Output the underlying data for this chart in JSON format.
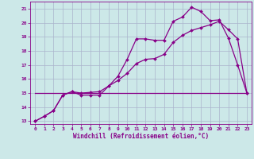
{
  "xlabel": "Windchill (Refroidissement éolien,°C)",
  "bg_color": "#cce8e8",
  "grid_color": "#aab4cc",
  "line_color": "#880088",
  "xlim": [
    -0.5,
    23.5
  ],
  "ylim": [
    12.8,
    21.5
  ],
  "yticks": [
    13,
    14,
    15,
    16,
    17,
    18,
    19,
    20,
    21
  ],
  "xticks": [
    0,
    1,
    2,
    3,
    4,
    5,
    6,
    7,
    8,
    9,
    10,
    11,
    12,
    13,
    14,
    15,
    16,
    17,
    18,
    19,
    20,
    21,
    22,
    23
  ],
  "curve1_x": [
    0,
    1,
    2,
    3,
    4,
    5,
    6,
    7,
    8,
    9,
    10,
    11,
    12,
    13,
    14,
    15,
    16,
    17,
    18,
    19,
    20,
    21,
    22,
    23
  ],
  "curve1_y": [
    13.0,
    13.35,
    13.75,
    14.85,
    15.1,
    14.85,
    14.85,
    14.85,
    15.5,
    16.2,
    17.4,
    18.85,
    18.85,
    18.75,
    18.75,
    20.1,
    20.4,
    21.1,
    20.8,
    20.15,
    20.2,
    18.9,
    17.0,
    15.0
  ],
  "curve2_x": [
    0,
    1,
    2,
    3,
    4,
    5,
    6,
    7,
    8,
    9,
    10,
    11,
    12,
    13,
    14,
    15,
    16,
    17,
    18,
    19,
    20,
    21,
    22,
    23
  ],
  "curve2_y": [
    13.0,
    13.35,
    13.75,
    14.85,
    15.1,
    15.0,
    15.05,
    15.1,
    15.5,
    15.9,
    16.4,
    17.1,
    17.4,
    17.45,
    17.75,
    18.6,
    19.1,
    19.45,
    19.65,
    19.85,
    20.1,
    19.5,
    18.85,
    15.0
  ],
  "curve3_x": [
    0,
    19,
    22,
    23
  ],
  "curve3_y": [
    15.0,
    15.0,
    15.0,
    15.0
  ],
  "markersize": 2.0,
  "linewidth": 0.9,
  "tick_fontsize": 4.5,
  "xlabel_fontsize": 5.5
}
